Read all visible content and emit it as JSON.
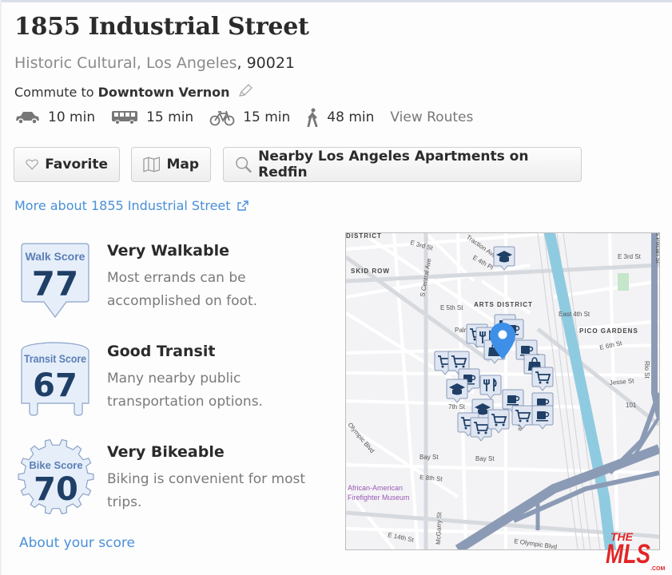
{
  "header": {
    "title": "1855 Industrial Street",
    "neighborhood": "Historic Cultural, Los Angeles",
    "zip": ", 90021",
    "commute_prefix": "Commute to ",
    "commute_destination": "Downtown Vernon"
  },
  "commute_modes": [
    {
      "icon": "car-icon",
      "time": "10 min"
    },
    {
      "icon": "bus-icon",
      "time": "15 min"
    },
    {
      "icon": "bike-icon",
      "time": "15 min"
    },
    {
      "icon": "walk-icon",
      "time": "48 min"
    }
  ],
  "view_routes": "View Routes",
  "buttons": {
    "favorite": "Favorite",
    "map": "Map",
    "nearby": "Nearby Los Angeles Apartments on Redfin"
  },
  "more_link": "More about 1855 Industrial Street",
  "scores": [
    {
      "badge_label": "Walk Score",
      "value": "77",
      "title": "Very Walkable",
      "description": "Most errands can be accomplished on foot."
    },
    {
      "badge_label": "Transit Score",
      "value": "67",
      "title": "Good Transit",
      "description": "Many nearby public transportation options."
    },
    {
      "badge_label": "Bike Score",
      "value": "70",
      "title": "Very Bikeable",
      "description": "Biking is convenient for most trips."
    }
  ],
  "about_link": "About your score",
  "colors": {
    "link": "#4a90d9",
    "badge_text": "#1f3f66",
    "badge_fill": "#e6eefa",
    "pin": "#3d8fe8",
    "river": "#8fcbe0",
    "freeway": "#8c9bb5"
  },
  "map": {
    "labels": [
      "DISTRICT",
      "E 3rd St",
      "Traction Ave",
      "E 4th Pl",
      "SKID ROW",
      "S Central Ave",
      "ARTS DISTRICT",
      "E 5th St",
      "East 4th St",
      "PICO GARDENS",
      "Palmetto",
      "6th St",
      "E 6th St",
      "Jesse St",
      "7th St",
      "Bay St",
      "Bay St",
      "E 8th St",
      "Santa Fe Ave",
      "E Olympic Blvd",
      "E 14th St",
      "McGarry St",
      "Olympic Blvd",
      "African-American",
      "Firefighter Museum",
      "E 3rd St",
      "Rio St",
      "S Pecan St",
      "101"
    ],
    "poi_types": [
      "school",
      "coffee",
      "grocery",
      "restaurant",
      "shopping"
    ]
  },
  "logo_text": "THE MLS .COM"
}
